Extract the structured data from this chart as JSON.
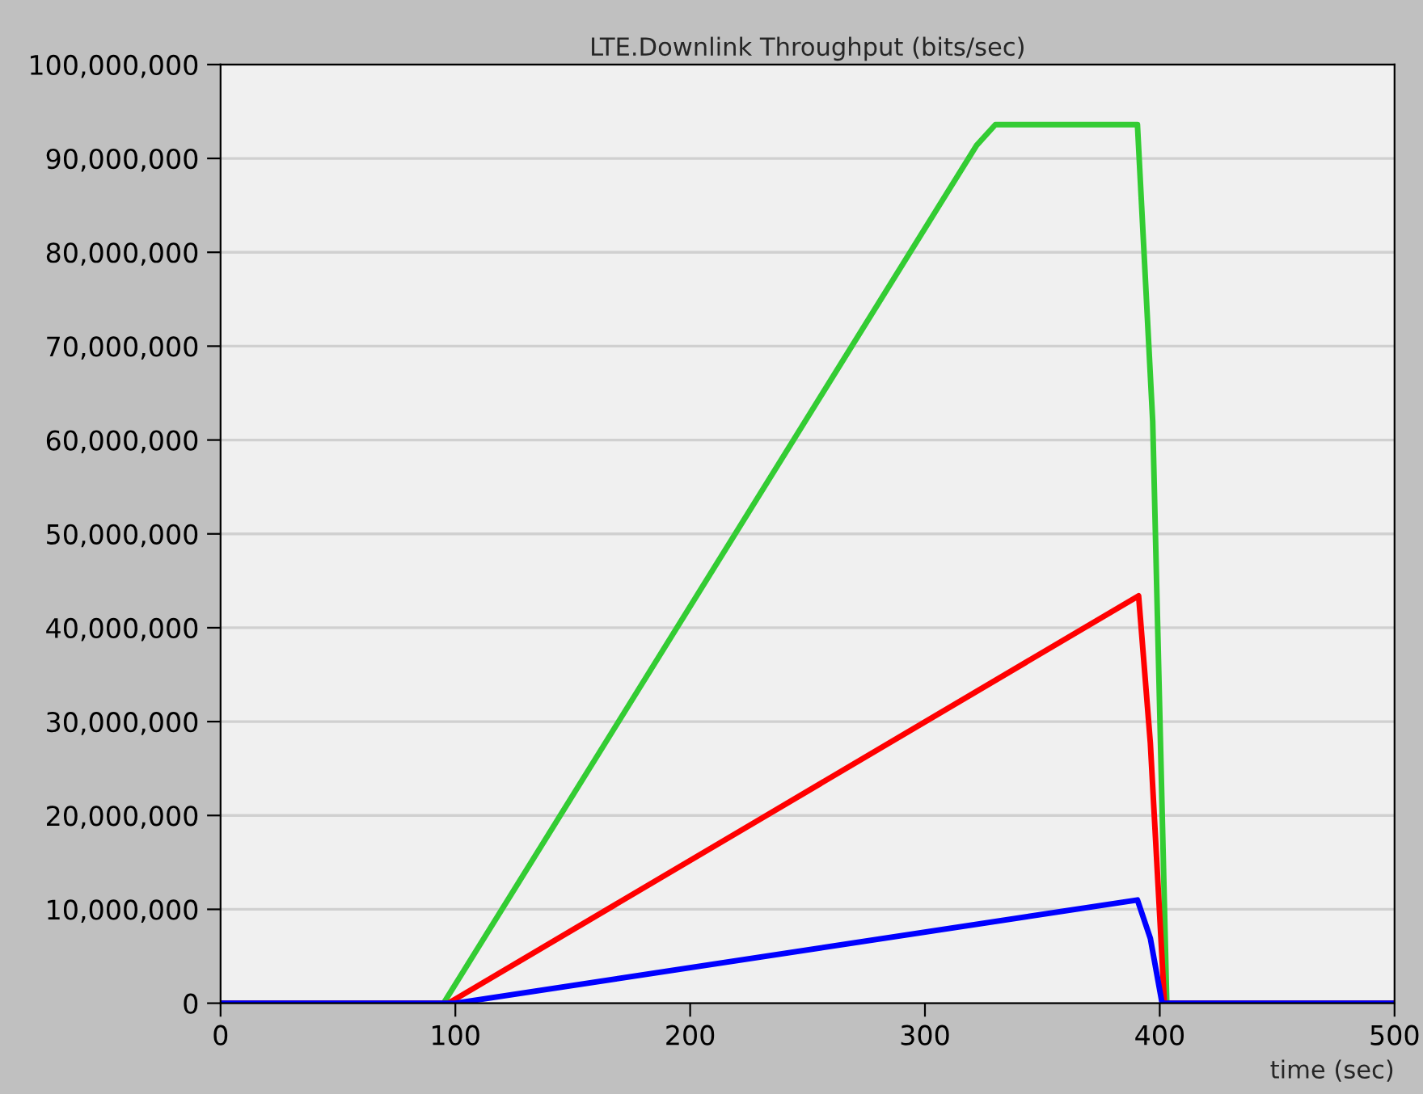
{
  "chart_data": {
    "type": "line",
    "title": "LTE.Downlink Throughput (bits/sec)",
    "xlabel": "time (sec)",
    "series": [
      {
        "color": "#33cc33",
        "x": [
          0,
          95,
          322,
          330,
          390.5,
          397,
          403,
          500
        ],
        "values": [
          0,
          0,
          91400000,
          93600000,
          93600000,
          62000000,
          0,
          0
        ]
      },
      {
        "color": "#ff0000",
        "x": [
          0,
          97,
          391,
          396,
          402,
          500
        ],
        "values": [
          0,
          0,
          43400000,
          27700000,
          0,
          0
        ]
      },
      {
        "color": "#0000ff",
        "x": [
          0,
          100,
          390.5,
          396,
          401,
          500
        ],
        "values": [
          0,
          0,
          11000000,
          6900000,
          0,
          0
        ]
      }
    ],
    "xlim": [
      0,
      500
    ],
    "xticks": [
      0,
      100,
      200,
      300,
      400,
      500
    ],
    "ylim": [
      0,
      100000000
    ],
    "yticks": [
      0,
      {
        "value": 10000000,
        "label": "10,000,000"
      },
      {
        "value": 20000000,
        "label": "20,000,000"
      },
      {
        "value": 30000000,
        "label": "30,000,000"
      },
      {
        "value": 40000000,
        "label": "40,000,000"
      },
      {
        "value": 50000000,
        "label": "50,000,000"
      },
      {
        "value": 60000000,
        "label": "60,000,000"
      },
      {
        "value": 70000000,
        "label": "70,000,000"
      },
      {
        "value": 80000000,
        "label": "80,000,000"
      },
      {
        "value": 90000000,
        "label": "90,000,000"
      },
      {
        "value": 100000000,
        "label": "100,000,000"
      }
    ],
    "grid": "y",
    "marker": "none",
    "line_style": "solid"
  }
}
